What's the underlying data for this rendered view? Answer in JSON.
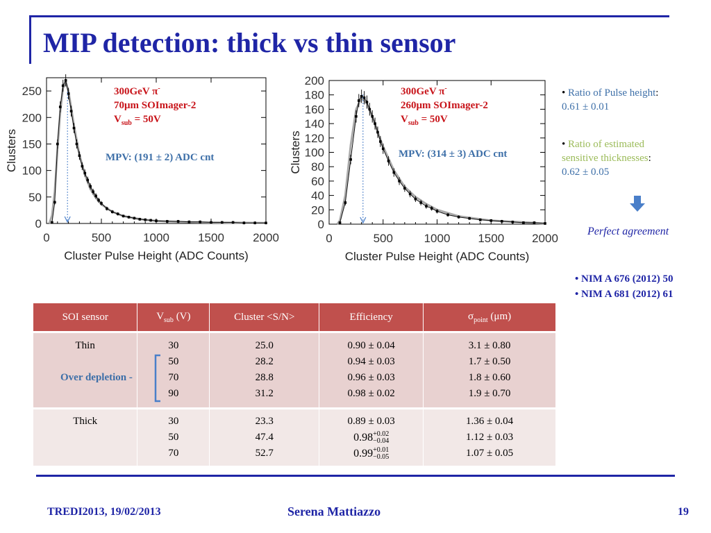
{
  "slide": {
    "title": "MIP detection: thick vs thin sensor",
    "colors": {
      "accent": "#1f25a6",
      "header_red": "#c0504d",
      "annotation_red": "#c8141a",
      "mpv_blue": "#3d6fa8",
      "green": "#9bbb59"
    }
  },
  "chart_data": [
    {
      "type": "line",
      "xlabel": "Cluster Pulse Height (ADC Counts)",
      "ylabel": "Clusters",
      "xlim": [
        0,
        2000
      ],
      "ylim": [
        0,
        275
      ],
      "xticks": [
        "0",
        "500",
        "1000",
        "1500",
        "2000"
      ],
      "yticks": [
        "0",
        "50",
        "100",
        "150",
        "200",
        "250"
      ],
      "annotation": {
        "line1": "300GeV π",
        "line1_sup": "-",
        "line2": "70μm SOImager-2",
        "line3_main": "V",
        "line3_sub": "sub",
        "line3_tail": " = 50V"
      },
      "mpv_label": "MPV: (191 ± 2) ADC cnt",
      "mpv_value": 191,
      "series": [
        {
          "kind": "data",
          "x": [
            50,
            75,
            100,
            125,
            150,
            175,
            200,
            225,
            250,
            275,
            300,
            325,
            350,
            375,
            400,
            425,
            450,
            475,
            500,
            550,
            600,
            650,
            700,
            750,
            800,
            850,
            900,
            950,
            1000,
            1100,
            1200,
            1300,
            1400,
            1500,
            1600,
            1700,
            1800,
            1900,
            2000
          ],
          "y": [
            2,
            40,
            150,
            220,
            260,
            270,
            245,
            212,
            180,
            150,
            128,
            108,
            95,
            82,
            70,
            60,
            52,
            44,
            38,
            28,
            22,
            18,
            14,
            12,
            10,
            8,
            7,
            6,
            5,
            4,
            4,
            3,
            3,
            2,
            2,
            2,
            1,
            1,
            1
          ]
        },
        {
          "kind": "fit",
          "x": [
            25,
            50,
            75,
            100,
            125,
            150,
            175,
            200,
            225,
            250,
            300,
            350,
            400,
            450,
            500,
            600,
            700,
            800,
            900,
            1000,
            1200,
            1500,
            2000
          ],
          "y": [
            0,
            15,
            60,
            140,
            210,
            255,
            268,
            250,
            218,
            185,
            130,
            92,
            65,
            48,
            36,
            22,
            14,
            10,
            7,
            5,
            3,
            2,
            1
          ]
        }
      ]
    },
    {
      "type": "line",
      "xlabel": "Cluster Pulse Height (ADC Counts)",
      "ylabel": "Clusters",
      "xlim": [
        0,
        2000
      ],
      "ylim": [
        0,
        200
      ],
      "xticks": [
        "0",
        "500",
        "1000",
        "1500",
        "2000"
      ],
      "yticks": [
        "0",
        "20",
        "40",
        "60",
        "80",
        "100",
        "120",
        "140",
        "160",
        "180",
        "200"
      ],
      "annotation": {
        "line1": "300GeV π",
        "line1_sup": "-",
        "line2": "260μm SOImager-2",
        "line3_main": "V",
        "line3_sub": "sub",
        "line3_tail": " = 50V"
      },
      "mpv_label": "MPV: (314 ± 3) ADC cnt",
      "mpv_value": 314,
      "series": [
        {
          "kind": "data",
          "x": [
            100,
            150,
            200,
            250,
            275,
            300,
            325,
            350,
            375,
            400,
            425,
            450,
            475,
            500,
            550,
            600,
            650,
            700,
            750,
            800,
            850,
            900,
            950,
            1000,
            1100,
            1200,
            1300,
            1400,
            1500,
            1600,
            1700,
            1800,
            1900,
            2000
          ],
          "y": [
            2,
            30,
            90,
            150,
            172,
            178,
            176,
            170,
            160,
            150,
            140,
            128,
            115,
            105,
            88,
            72,
            60,
            50,
            42,
            35,
            30,
            25,
            22,
            18,
            13,
            10,
            8,
            6,
            5,
            4,
            3,
            2,
            2,
            1
          ]
        },
        {
          "kind": "fit",
          "x": [
            75,
            100,
            150,
            200,
            250,
            300,
            350,
            400,
            450,
            500,
            600,
            700,
            800,
            900,
            1000,
            1200,
            1500,
            2000
          ],
          "y": [
            0,
            5,
            40,
            110,
            160,
            176,
            168,
            150,
            128,
            108,
            75,
            52,
            38,
            28,
            20,
            11,
            5,
            1
          ]
        }
      ]
    }
  ],
  "sidebar": {
    "bullet": "•",
    "item1_label": "Ratio of  Pulse height",
    "item1_colon": ":",
    "item1_value": "0.61 ± 0.01",
    "item2_label_a": "Ratio of  estimated",
    "item2_label_b": "sensitive thicknesses",
    "item2_colon": ":",
    "item2_value": "0.62 ± 0.05",
    "conclusion": "Perfect agreement",
    "ref1": "NIM A 676 (2012) 50",
    "ref2": "NIM A 681 (2012) 61"
  },
  "table": {
    "headers": {
      "sensor": "SOI sensor",
      "vsub_main": "V",
      "vsub_sub": "sub",
      "vsub_tail": " (V)",
      "cluster": "Cluster <S/N>",
      "efficiency": "Efficiency",
      "sigma_main": "σ",
      "sigma_sub": "point",
      "sigma_tail": " (μm)"
    },
    "thin": {
      "label": "Thin",
      "vsub": [
        "30",
        "50",
        "70",
        "90"
      ],
      "cluster": [
        "25.0",
        "28.2",
        "28.8",
        "31.2"
      ],
      "efficiency": [
        "0.90 ± 0.04",
        "0.94 ± 0.03",
        "0.96 ± 0.03",
        "0.98 ± 0.02"
      ],
      "sigma": [
        "3.1 ± 0.80",
        "1.7 ± 0.50",
        "1.8 ± 0.60",
        "1.9 ± 0.70"
      ]
    },
    "thick": {
      "label": "Thick",
      "vsub": [
        "30",
        "50",
        "70"
      ],
      "cluster": [
        "23.3",
        "47.4",
        "52.7"
      ],
      "efficiency_first": "0.89 ± 0.03",
      "eff2_base": "0.98",
      "eff2_up": "+0.02",
      "eff2_down": "−0.04",
      "eff3_base": "0.99",
      "eff3_up": "+0.01",
      "eff3_down": "−0.05",
      "sigma": [
        "1.36 ± 0.04",
        "1.12 ± 0.03",
        "1.07 ± 0.05"
      ]
    },
    "over_depletion_label": "Over depletion -"
  },
  "footer": {
    "left": "TREDI2013, 19/02/2013",
    "center": "Serena Mattiazzo",
    "page": "19"
  }
}
